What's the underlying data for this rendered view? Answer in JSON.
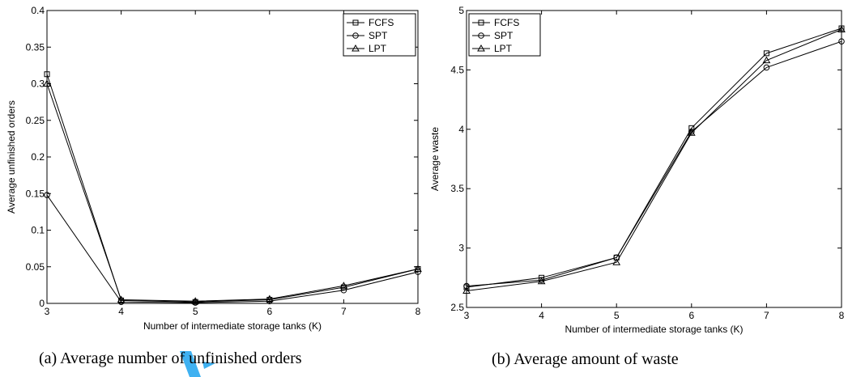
{
  "chart_data": [
    {
      "type": "line",
      "caption": "(a)  Average number of unfinished orders",
      "xlabel": "Number of intermediate storage tanks (K)",
      "ylabel": "Average unfinished orders",
      "xlim": [
        3,
        8
      ],
      "ylim": [
        0,
        0.4
      ],
      "xticks": [
        "3",
        "4",
        "5",
        "6",
        "7",
        "8"
      ],
      "yticks": [
        "0",
        "0.05",
        "0.1",
        "0.15",
        "0.2",
        "0.25",
        "0.3",
        "0.35",
        "0.4"
      ],
      "grid": false,
      "legend_position": "top-right",
      "x": [
        3,
        4,
        5,
        6,
        7,
        8
      ],
      "series": [
        {
          "name": "FCFS",
          "marker": "square",
          "values": [
            0.313,
            0.004,
            0.002,
            0.005,
            0.022,
            0.047
          ]
        },
        {
          "name": "SPT",
          "marker": "circle",
          "values": [
            0.148,
            0.002,
            0.001,
            0.003,
            0.018,
            0.043
          ]
        },
        {
          "name": "LPT",
          "marker": "triangle",
          "values": [
            0.3,
            0.005,
            0.003,
            0.006,
            0.024,
            0.047
          ]
        }
      ]
    },
    {
      "type": "line",
      "caption": "(b)  Average amount of waste",
      "xlabel": "Number of intermediate storage tanks (K)",
      "ylabel": "Average waste",
      "xlim": [
        3,
        8
      ],
      "ylim": [
        2.5,
        5
      ],
      "xticks": [
        "3",
        "4",
        "5",
        "6",
        "7",
        "8"
      ],
      "yticks": [
        "2.5",
        "3",
        "3.5",
        "4",
        "4.5",
        "5"
      ],
      "grid": false,
      "legend_position": "top-left",
      "x": [
        3,
        4,
        5,
        6,
        7,
        8
      ],
      "series": [
        {
          "name": "FCFS",
          "marker": "square",
          "values": [
            2.67,
            2.75,
            2.92,
            4.01,
            4.64,
            4.85
          ]
        },
        {
          "name": "SPT",
          "marker": "circle",
          "values": [
            2.68,
            2.73,
            2.92,
            3.98,
            4.52,
            4.74
          ]
        },
        {
          "name": "LPT",
          "marker": "triangle",
          "values": [
            2.64,
            2.72,
            2.88,
            3.97,
            4.58,
            4.84
          ]
        }
      ]
    }
  ]
}
